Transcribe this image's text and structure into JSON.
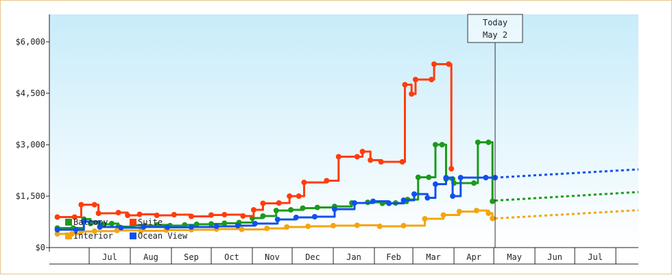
{
  "chart_data": {
    "type": "line",
    "title": "",
    "xlabel": "",
    "ylabel": "",
    "ylim": [
      0,
      6800
    ],
    "y_ticks": [
      {
        "value": 0,
        "label": "$0"
      },
      {
        "value": 1500,
        "label": "$1,500"
      },
      {
        "value": 3000,
        "label": "$3,000"
      },
      {
        "value": 4500,
        "label": "$4,500"
      },
      {
        "value": 6000,
        "label": "$6,000"
      }
    ],
    "x_domain": [
      "2023-06-01",
      "2024-08-18"
    ],
    "months": [
      {
        "label": "Jul",
        "start": "2023-07-01"
      },
      {
        "label": "Aug",
        "start": "2023-08-01"
      },
      {
        "label": "Sep",
        "start": "2023-09-01"
      },
      {
        "label": "Oct",
        "start": "2023-10-01"
      },
      {
        "label": "Nov",
        "start": "2023-11-01"
      },
      {
        "label": "Dec",
        "start": "2023-12-01"
      },
      {
        "label": "Jan",
        "start": "2024-01-01"
      },
      {
        "label": "Feb",
        "start": "2024-02-01"
      },
      {
        "label": "Mar",
        "start": "2024-03-01"
      },
      {
        "label": "Apr",
        "start": "2024-04-01"
      },
      {
        "label": "May",
        "start": "2024-05-01"
      },
      {
        "label": "Jun",
        "start": "2024-06-01"
      },
      {
        "label": "Jul",
        "start": "2024-07-01"
      }
    ],
    "month_end": "2024-08-01",
    "today": {
      "line1": "Today",
      "line2": "May 2",
      "date": "2024-05-02"
    },
    "legend": {
      "placement": "bottom-left"
    },
    "grid": false,
    "series": [
      {
        "name": "Balcony",
        "color": "#1c9a1c",
        "points": [
          [
            "2023-06-07",
            570
          ],
          [
            "2023-06-19",
            570
          ],
          [
            "2023-06-27",
            830
          ],
          [
            "2023-07-02",
            700
          ],
          [
            "2023-07-12",
            680
          ],
          [
            "2023-07-18",
            700
          ],
          [
            "2023-07-23",
            610
          ],
          [
            "2023-08-03",
            650
          ],
          [
            "2023-08-12",
            640
          ],
          [
            "2023-08-21",
            660
          ],
          [
            "2023-08-31",
            640
          ],
          [
            "2023-09-11",
            660
          ],
          [
            "2023-09-20",
            680
          ],
          [
            "2023-10-01",
            690
          ],
          [
            "2023-10-11",
            710
          ],
          [
            "2023-10-22",
            730
          ],
          [
            "2023-11-01",
            860
          ],
          [
            "2023-11-09",
            920
          ],
          [
            "2023-11-19",
            1080
          ],
          [
            "2023-11-30",
            1100
          ],
          [
            "2023-12-09",
            1150
          ],
          [
            "2023-12-20",
            1170
          ],
          [
            "2024-01-02",
            1200
          ],
          [
            "2024-01-15",
            1300
          ],
          [
            "2024-01-27",
            1320
          ],
          [
            "2024-02-07",
            1290
          ],
          [
            "2024-02-17",
            1300
          ],
          [
            "2024-02-26",
            1400
          ],
          [
            "2024-03-05",
            2050
          ],
          [
            "2024-03-13",
            2050
          ],
          [
            "2024-03-18",
            3000
          ],
          [
            "2024-03-23",
            3000
          ],
          [
            "2024-03-26",
            2000
          ],
          [
            "2024-03-31",
            2000
          ],
          [
            "2024-04-01",
            1880
          ],
          [
            "2024-04-16",
            1880
          ],
          [
            "2024-04-19",
            3070
          ],
          [
            "2024-04-27",
            3070
          ],
          [
            "2024-04-30",
            1350
          ]
        ],
        "projection": [
          [
            "2024-05-02",
            1370
          ],
          [
            "2024-08-18",
            1620
          ]
        ]
      },
      {
        "name": "Suite",
        "color": "#ff3c0c",
        "points": [
          [
            "2023-06-07",
            890
          ],
          [
            "2023-06-20",
            890
          ],
          [
            "2023-06-25",
            1250
          ],
          [
            "2023-07-05",
            1250
          ],
          [
            "2023-07-08",
            1000
          ],
          [
            "2023-07-23",
            1020
          ],
          [
            "2023-07-30",
            940
          ],
          [
            "2023-08-08",
            970
          ],
          [
            "2023-08-21",
            940
          ],
          [
            "2023-09-03",
            960
          ],
          [
            "2023-09-16",
            910
          ],
          [
            "2023-10-01",
            950
          ],
          [
            "2023-10-11",
            960
          ],
          [
            "2023-10-25",
            920
          ],
          [
            "2023-11-02",
            1100
          ],
          [
            "2023-11-09",
            1290
          ],
          [
            "2023-11-21",
            1300
          ],
          [
            "2023-11-29",
            1500
          ],
          [
            "2023-12-06",
            1500
          ],
          [
            "2023-12-10",
            1900
          ],
          [
            "2023-12-27",
            1950
          ],
          [
            "2024-01-05",
            2650
          ],
          [
            "2024-01-19",
            2650
          ],
          [
            "2024-01-23",
            2800
          ],
          [
            "2024-01-29",
            2550
          ],
          [
            "2024-02-06",
            2500
          ],
          [
            "2024-02-22",
            2500
          ],
          [
            "2024-02-24",
            4750
          ],
          [
            "2024-02-29",
            4480
          ],
          [
            "2024-03-03",
            4900
          ],
          [
            "2024-03-15",
            4900
          ],
          [
            "2024-03-17",
            5350
          ],
          [
            "2024-03-28",
            5350
          ],
          [
            "2024-03-30",
            2300
          ]
        ],
        "projection": []
      },
      {
        "name": "Interior",
        "color": "#f5a50c",
        "points": [
          [
            "2023-06-07",
            400
          ],
          [
            "2023-06-18",
            400
          ],
          [
            "2023-06-25",
            470
          ],
          [
            "2023-07-05",
            480
          ],
          [
            "2023-07-22",
            500
          ],
          [
            "2023-08-09",
            490
          ],
          [
            "2023-08-28",
            510
          ],
          [
            "2023-09-16",
            520
          ],
          [
            "2023-10-05",
            540
          ],
          [
            "2023-10-24",
            530
          ],
          [
            "2023-11-12",
            560
          ],
          [
            "2023-11-27",
            600
          ],
          [
            "2023-12-13",
            620
          ],
          [
            "2024-01-01",
            640
          ],
          [
            "2024-01-19",
            650
          ],
          [
            "2024-02-05",
            620
          ],
          [
            "2024-02-23",
            640
          ],
          [
            "2024-03-10",
            840
          ],
          [
            "2024-03-24",
            950
          ],
          [
            "2024-04-05",
            1050
          ],
          [
            "2024-04-18",
            1080
          ],
          [
            "2024-04-27",
            1000
          ],
          [
            "2024-04-30",
            850
          ]
        ],
        "projection": [
          [
            "2024-05-02",
            850
          ],
          [
            "2024-08-18",
            1090
          ]
        ]
      },
      {
        "name": "Ocean View",
        "color": "#1050ee",
        "points": [
          [
            "2023-06-07",
            520
          ],
          [
            "2023-06-21",
            520
          ],
          [
            "2023-06-27",
            760
          ],
          [
            "2023-07-09",
            600
          ],
          [
            "2023-07-25",
            580
          ],
          [
            "2023-08-11",
            600
          ],
          [
            "2023-08-29",
            590
          ],
          [
            "2023-09-16",
            600
          ],
          [
            "2023-10-05",
            620
          ],
          [
            "2023-10-21",
            640
          ],
          [
            "2023-11-03",
            700
          ],
          [
            "2023-11-20",
            820
          ],
          [
            "2023-12-04",
            880
          ],
          [
            "2023-12-18",
            900
          ],
          [
            "2024-01-02",
            1120
          ],
          [
            "2024-01-17",
            1300
          ],
          [
            "2024-01-31",
            1350
          ],
          [
            "2024-02-12",
            1290
          ],
          [
            "2024-02-23",
            1380
          ],
          [
            "2024-03-02",
            1560
          ],
          [
            "2024-03-12",
            1450
          ],
          [
            "2024-03-18",
            1850
          ],
          [
            "2024-03-26",
            2040
          ],
          [
            "2024-03-31",
            1500
          ],
          [
            "2024-04-06",
            2040
          ],
          [
            "2024-04-25",
            2040
          ],
          [
            "2024-05-02",
            2040
          ]
        ],
        "projection": [
          [
            "2024-05-02",
            2040
          ],
          [
            "2024-08-18",
            2280
          ]
        ]
      }
    ]
  },
  "legend_items": [
    {
      "label": "Balcony",
      "color": "#1c9a1c"
    },
    {
      "label": "Suite",
      "color": "#ff3c0c"
    },
    {
      "label": "Interior",
      "color": "#f5a50c"
    },
    {
      "label": "Ocean View",
      "color": "#1050ee"
    }
  ]
}
